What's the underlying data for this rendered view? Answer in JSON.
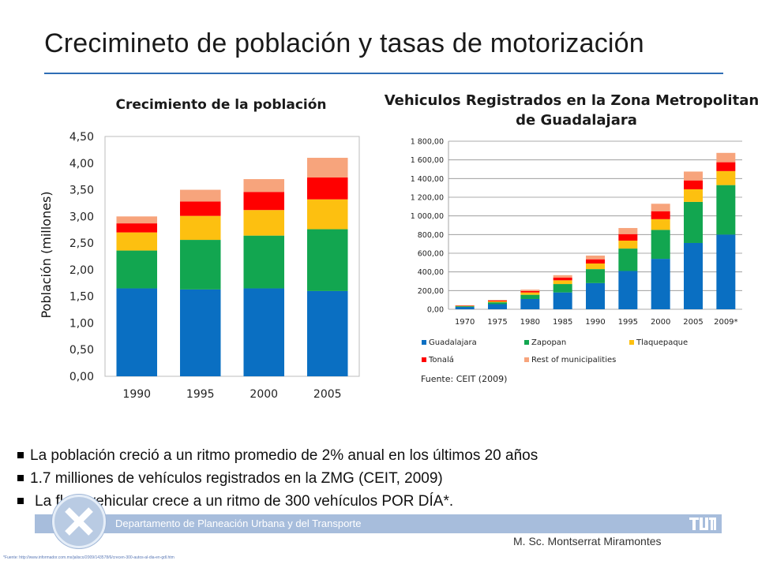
{
  "slide": {
    "title": "Crecimineto de población y tasas de motorización",
    "bullets": [
      "La población creció a un ritmo promedio de 2% anual en los últimos 20 años",
      "1.7 milliones de vehículos registrados en la ZMG (CEIT, 2009)",
      "La flota vehicular crece a un ritmo de  300 vehículos POR DÍA*."
    ],
    "footer_text": "Departamento de Planeación Urbana y del Transporte",
    "author": "M. Sc. Montserrat Miramontes",
    "source_note": "Fuente: CEIT (2009)",
    "fineprint": "*Fuente: http://www.informador.com.mx/jalisco/2009/143578/6/crecen-300-autos-al-dia-en-gdl.htm"
  },
  "colors": {
    "guadalajara": "#0a6fc2",
    "zapopan": "#12a650",
    "tlaquepaque": "#fdc010",
    "tonala": "#ff0000",
    "rest": "#f7a47c",
    "title_rule": "#2f6db5",
    "footer_bar": "#a7bddc"
  },
  "chart_data": [
    {
      "type": "bar",
      "stacked": true,
      "title": "Crecimiento de la población",
      "ylabel": "Población (millones)",
      "xlabel": "",
      "categories": [
        "1990",
        "1995",
        "2000",
        "2005"
      ],
      "yticks": [
        "0,00",
        "0,50",
        "1,00",
        "1,50",
        "2,00",
        "2,50",
        "3,00",
        "3,50",
        "4,00",
        "4,50"
      ],
      "ylim": [
        0,
        4.5
      ],
      "grid": false,
      "legend": "none",
      "series": [
        {
          "key": "guadalajara",
          "values": [
            1.65,
            1.63,
            1.65,
            1.6
          ]
        },
        {
          "key": "zapopan",
          "values": [
            0.71,
            0.93,
            0.99,
            1.16
          ]
        },
        {
          "key": "tlaquepaque",
          "values": [
            0.34,
            0.45,
            0.48,
            0.56
          ]
        },
        {
          "key": "tonala",
          "values": [
            0.17,
            0.27,
            0.34,
            0.41
          ]
        },
        {
          "key": "rest",
          "values": [
            0.13,
            0.22,
            0.24,
            0.37
          ]
        }
      ]
    },
    {
      "type": "bar",
      "stacked": true,
      "title": "Vehiculos Registrados en la Zona Metropolitana de Guadalajara",
      "xlabel": "",
      "ylabel": "",
      "categories": [
        "1970",
        "1975",
        "1980",
        "1985",
        "1990",
        "1995",
        "2000",
        "2005",
        "2009*"
      ],
      "yticks": [
        "0,00",
        "200,00",
        "400,00",
        "600,00",
        "800,00",
        "1 000,00",
        "1 200,00",
        "1 400,00",
        "1 600,00",
        "1 800,00"
      ],
      "ylim": [
        0,
        1800
      ],
      "grid": true,
      "legend": "bottom",
      "series": [
        {
          "key": "guadalajara",
          "name": "Guadalajara",
          "values": [
            25,
            55,
            110,
            180,
            280,
            410,
            540,
            710,
            800
          ]
        },
        {
          "key": "zapopan",
          "name": "Zapopan",
          "values": [
            8,
            20,
            45,
            90,
            150,
            240,
            310,
            440,
            530
          ]
        },
        {
          "key": "tlaquepaque",
          "name": "Tlaquepaque",
          "values": [
            4,
            10,
            25,
            40,
            60,
            85,
            115,
            135,
            150
          ]
        },
        {
          "key": "tonala",
          "name": "Tonalá",
          "values": [
            3,
            8,
            15,
            30,
            45,
            70,
            85,
            95,
            95
          ]
        },
        {
          "key": "rest",
          "name": "Rest of municipalities",
          "values": [
            3,
            7,
            15,
            25,
            40,
            65,
            80,
            95,
            100
          ]
        }
      ]
    }
  ]
}
